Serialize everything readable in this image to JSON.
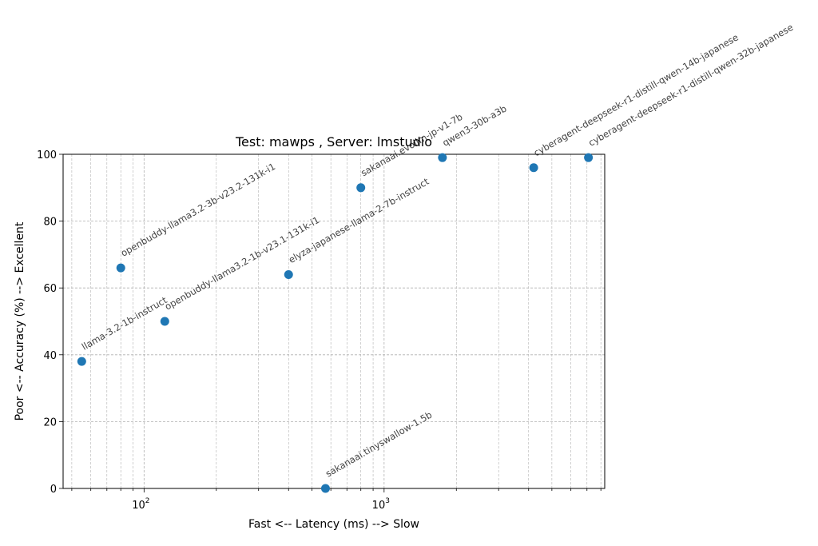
{
  "chart_data": {
    "type": "scatter",
    "title": "Test: mawps , Server: lmstudio",
    "xlabel": "Fast <--  Latency (ms)  --> Slow",
    "ylabel": "Poor <--  Accuracy (%)  --> Excellent",
    "xscale": "log",
    "xlim": [
      46,
      8300
    ],
    "ylim": [
      0,
      100
    ],
    "x_ticks": [
      {
        "value": 100,
        "base": "10",
        "exp": "2"
      },
      {
        "value": 1000,
        "base": "10",
        "exp": "3"
      }
    ],
    "y_ticks": [
      "0",
      "20",
      "40",
      "60",
      "80",
      "100"
    ],
    "grid": true,
    "marker_color": "#1f77b4",
    "points": [
      {
        "label": "llama-3.2-1b-instruct",
        "x": 55,
        "y": 38
      },
      {
        "label": "openbuddy-llama3.2-3b-v23.2-131k-i1",
        "x": 80,
        "y": 66
      },
      {
        "label": "openbuddy-llama3.2-1b-v23.1-131k-i1",
        "x": 122,
        "y": 50
      },
      {
        "label": "elyza-japanese-llama-2-7b-instruct",
        "x": 400,
        "y": 64
      },
      {
        "label": "sakanaai.tinyswallow-1.5b",
        "x": 570,
        "y": 0
      },
      {
        "label": "sakanaai.evollm-jp-v1-7b",
        "x": 800,
        "y": 90
      },
      {
        "label": "qwen3-30b-a3b",
        "x": 1750,
        "y": 99
      },
      {
        "label": "cyberagent-deepseek-r1-distill-qwen-14b-japanese",
        "x": 4200,
        "y": 96
      },
      {
        "label": "cyberagent-deepseek-r1-distill-qwen-32b-japanese",
        "x": 7100,
        "y": 99
      }
    ]
  }
}
